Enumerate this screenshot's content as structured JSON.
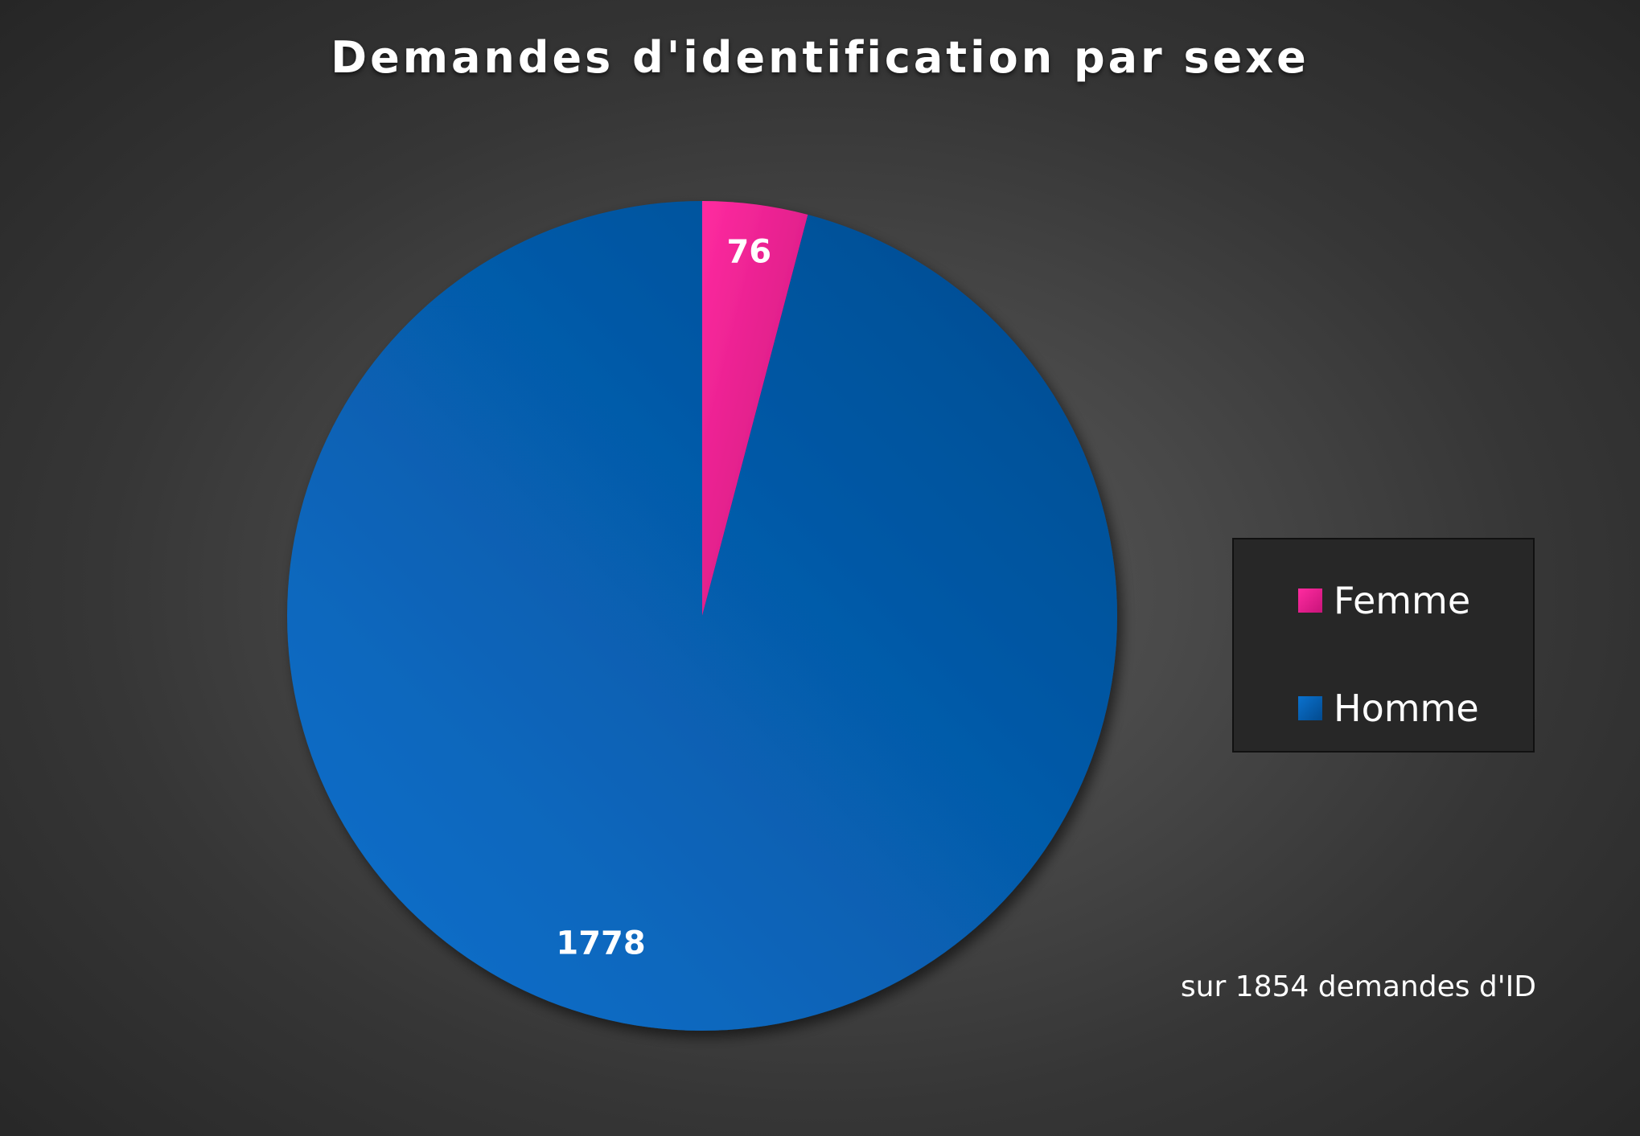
{
  "chart_data": {
    "type": "pie",
    "title": "Demandes d'identification par sexe",
    "categories": [
      "Femme",
      "Homme"
    ],
    "values": [
      76,
      1778
    ],
    "colors": [
      "#e8208c",
      "#0862b0"
    ],
    "data_labels": [
      "76",
      "1778"
    ],
    "legend_position": "right",
    "legend": [
      {
        "label": "Femme",
        "color": "#e8208c",
        "icon": "pink-square-icon"
      },
      {
        "label": "Homme",
        "color": "#0862b0",
        "icon": "blue-square-icon"
      }
    ],
    "annotation": "sur 1854 demandes d'ID"
  }
}
